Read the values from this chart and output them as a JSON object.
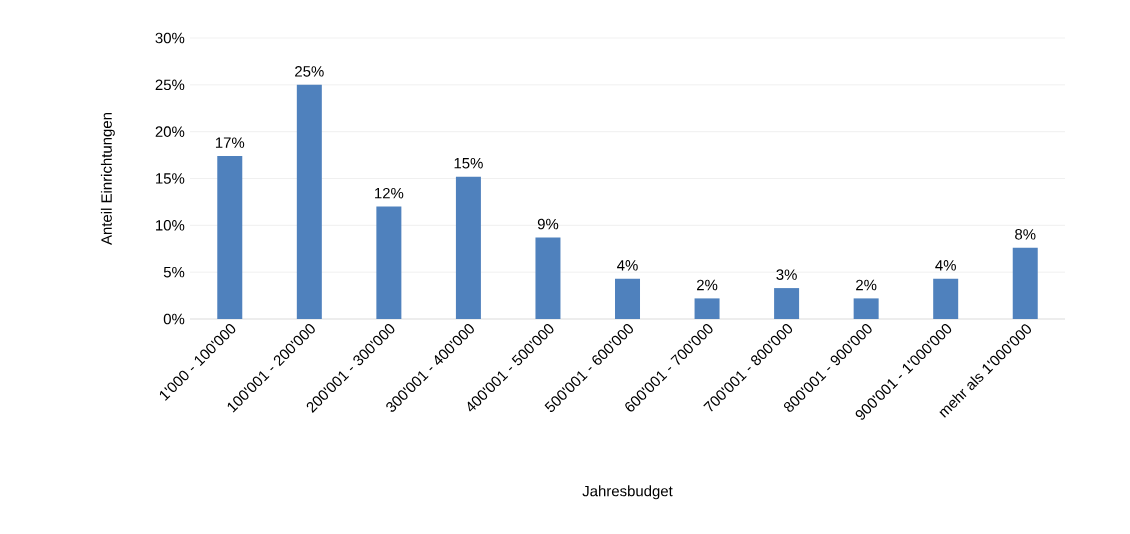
{
  "chart_data": {
    "type": "bar",
    "xlabel": "Jahresbudget",
    "ylabel": "Anteil Einrichtungen",
    "categories": [
      "1'000 - 100'000",
      "100'001 - 200'000",
      "200'001 - 300'000",
      "300'001 - 400'000",
      "400'001 - 500'000",
      "500'001 - 600'000",
      "600'001 - 700'000",
      "700'001 - 800'000",
      "800'001 - 900'000",
      "900'001 - 1'000'000",
      "mehr als 1'000'000"
    ],
    "values": [
      17.4,
      25.0,
      12.0,
      15.2,
      8.7,
      4.3,
      2.2,
      3.3,
      2.2,
      4.3,
      7.6
    ],
    "value_labels": [
      "17%",
      "25%",
      "12%",
      "15%",
      "9%",
      "4%",
      "2%",
      "3%",
      "2%",
      "4%",
      "8%"
    ],
    "color": "#4f81bd",
    "ylim": [
      0,
      30
    ],
    "yticks": [
      {
        "value": 0,
        "label": "0%"
      },
      {
        "value": 5,
        "label": "5%"
      },
      {
        "value": 10,
        "label": "10%"
      },
      {
        "value": 15,
        "label": "15%"
      },
      {
        "value": 20,
        "label": "20%"
      },
      {
        "value": 25,
        "label": "25%"
      },
      {
        "value": 30,
        "label": "30%"
      }
    ],
    "grid": "y"
  }
}
